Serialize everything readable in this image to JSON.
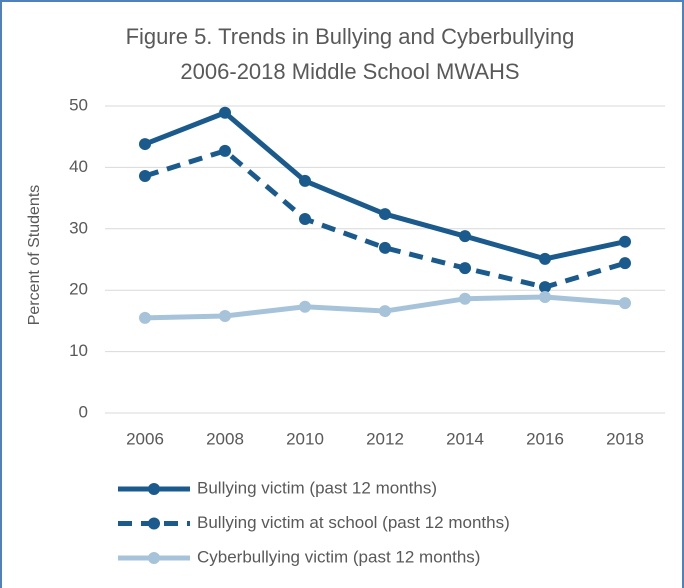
{
  "chart_data": {
    "type": "line",
    "title": [
      "Figure 5. Trends in Bullying and Cyberbullying",
      "2006-2018 Middle School MWAHS"
    ],
    "y_label": "Percent of Students",
    "categories": [
      "2006",
      "2008",
      "2010",
      "2012",
      "2014",
      "2016",
      "2018"
    ],
    "series": [
      {
        "name": "Bullying victim (past 12 months)",
        "color": "#1b5a8c",
        "line_style": "solid",
        "values": [
          43.8,
          48.9,
          37.8,
          32.4,
          28.8,
          25.1,
          27.9
        ]
      },
      {
        "name": "Bullying victim at school (past 12 months)",
        "color": "#1b5a8c",
        "line_style": "dashed",
        "values": [
          38.6,
          42.7,
          31.6,
          26.9,
          23.6,
          20.5,
          24.4
        ]
      },
      {
        "name": "Cyberbullying victim (past 12 months)",
        "color": "#a7c3da",
        "line_style": "solid",
        "values": [
          15.5,
          15.8,
          17.3,
          16.6,
          18.6,
          18.9,
          17.9
        ]
      }
    ],
    "ylim": [
      0,
      50
    ],
    "yticks": [
      0,
      10,
      20,
      30,
      40,
      50
    ],
    "grid": true,
    "legend": "bottom"
  }
}
